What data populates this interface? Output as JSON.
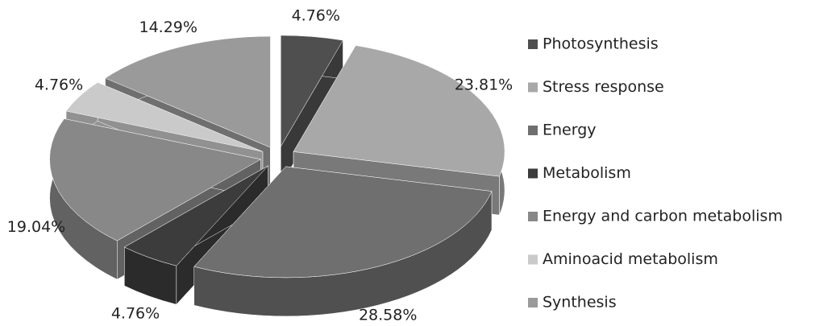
{
  "chart_data": {
    "type": "pie",
    "categories": [
      "Photosynthesis",
      "Stress response",
      "Energy",
      "Metabolism",
      "Energy and carbon metabolism",
      "Aminoacid metabolism",
      "Synthesis"
    ],
    "values": [
      4.76,
      23.81,
      28.58,
      4.76,
      19.04,
      4.76,
      14.29
    ],
    "value_labels": [
      "4.76%",
      "23.81%",
      "28.58%",
      "4.76%",
      "19.04%",
      "4.76%",
      "14.29%"
    ],
    "colors": [
      "#4f4f4f",
      "#a8a8a8",
      "#6f6f6f",
      "#3c3c3c",
      "#888888",
      "#cacaca",
      "#9a9a9a"
    ],
    "legend": "right"
  }
}
